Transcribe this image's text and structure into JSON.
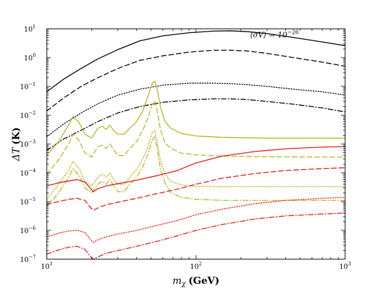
{
  "chart_data": {
    "type": "line",
    "xlabel_var": "m",
    "xlabel_sub": "χ",
    "xlabel_unit": "(GeV)",
    "ylabel_var": "ΔT",
    "ylabel_unit": "(K)",
    "x_scale": "log",
    "y_scale": "log",
    "xlim": [
      10,
      1000
    ],
    "ylim": [
      1e-07,
      10
    ],
    "grid": false,
    "x_ticks": [
      {
        "value": 10,
        "base": "10",
        "exp": "1"
      },
      {
        "value": 100,
        "base": "10",
        "exp": "2"
      },
      {
        "value": 1000,
        "base": "10",
        "exp": "3"
      }
    ],
    "y_ticks": [
      {
        "value": 1e-07,
        "base": "10",
        "exp": "−7"
      },
      {
        "value": 1e-06,
        "base": "10",
        "exp": "−6"
      },
      {
        "value": 1e-05,
        "base": "10",
        "exp": "−5"
      },
      {
        "value": 0.0001,
        "base": "10",
        "exp": "−4"
      },
      {
        "value": 0.001,
        "base": "10",
        "exp": "−3"
      },
      {
        "value": 0.01,
        "base": "10",
        "exp": "−2"
      },
      {
        "value": 0.1,
        "base": "10",
        "exp": "−1"
      },
      {
        "value": 1,
        "base": "10",
        "exp": "0"
      },
      {
        "value": 10,
        "base": "10",
        "exp": "1"
      }
    ],
    "annotation": {
      "lhs": "⟨σV⟩ = 10",
      "exp": "−26",
      "x": 230,
      "y": 5.0
    },
    "series": [
      {
        "color": "#000000",
        "style": "solid",
        "x": [
          10,
          13,
          17,
          22,
          30,
          42,
          60,
          90,
          130,
          170,
          220,
          300,
          450,
          700,
          1000
        ],
        "y": [
          0.065,
          0.18,
          0.42,
          0.9,
          1.9,
          3.8,
          5.7,
          7.3,
          8.3,
          8.5,
          8.0,
          6.8,
          5.0,
          3.5,
          2.6
        ]
      },
      {
        "color": "#000000",
        "style": "dashed",
        "x": [
          10,
          13,
          17,
          22,
          30,
          42,
          60,
          90,
          130,
          170,
          220,
          300,
          450,
          700,
          1000
        ],
        "y": [
          0.014,
          0.04,
          0.1,
          0.2,
          0.42,
          0.8,
          1.15,
          1.55,
          1.8,
          1.8,
          1.7,
          1.4,
          1.0,
          0.7,
          0.5
        ]
      },
      {
        "color": "#000000",
        "style": "dotted",
        "x": [
          10,
          13,
          17,
          22,
          30,
          42,
          60,
          90,
          130,
          170,
          220,
          300,
          450,
          700,
          1000
        ],
        "y": [
          0.0018,
          0.005,
          0.012,
          0.025,
          0.05,
          0.08,
          0.11,
          0.13,
          0.13,
          0.125,
          0.115,
          0.1,
          0.08,
          0.065,
          0.05
        ]
      },
      {
        "color": "#000000",
        "style": "dashdot",
        "x": [
          10,
          13,
          17,
          22,
          30,
          42,
          60,
          90,
          130,
          170,
          220,
          300,
          450,
          700,
          1000
        ],
        "y": [
          0.0006,
          0.0015,
          0.003,
          0.006,
          0.012,
          0.02,
          0.028,
          0.034,
          0.037,
          0.037,
          0.035,
          0.03,
          0.024,
          0.018,
          0.013
        ]
      },
      {
        "color": "#b5b51e",
        "style": "solid",
        "x": [
          10,
          12,
          14,
          15,
          16.5,
          18,
          20,
          22,
          23.5,
          25,
          26.5,
          28,
          30,
          33,
          36,
          40,
          44,
          48,
          51,
          53,
          55,
          58,
          62,
          68,
          80,
          100,
          150,
          300,
          1000
        ],
        "y": [
          0.0004,
          0.0012,
          0.0045,
          0.009,
          0.0055,
          0.0022,
          0.0016,
          0.0035,
          0.0042,
          0.0032,
          0.0045,
          0.003,
          0.0022,
          0.0022,
          0.0035,
          0.006,
          0.014,
          0.05,
          0.13,
          0.15,
          0.08,
          0.018,
          0.006,
          0.0035,
          0.0023,
          0.0019,
          0.0017,
          0.0016,
          0.0016
        ]
      },
      {
        "color": "#b5b51e",
        "style": "dashed",
        "x": [
          10,
          12,
          14,
          15,
          16.5,
          18,
          20,
          22,
          23.5,
          25,
          26.5,
          28,
          30,
          33,
          36,
          40,
          44,
          48,
          51,
          53,
          55,
          58,
          62,
          68,
          80,
          100,
          150,
          300,
          1000
        ],
        "y": [
          9e-05,
          0.00028,
          0.001,
          0.0022,
          0.0013,
          0.0005,
          0.00035,
          0.0008,
          0.0009,
          0.0007,
          0.001,
          0.00065,
          0.0004,
          0.0004,
          0.0007,
          0.0012,
          0.003,
          0.009,
          0.025,
          0.03,
          0.014,
          0.003,
          0.0011,
          0.0007,
          0.00048,
          0.00042,
          0.00038,
          0.00036,
          0.00035
        ]
      },
      {
        "color": "#b5b51e",
        "style": "dotted",
        "x": [
          10,
          12,
          14,
          15,
          16.5,
          18,
          20,
          22,
          23.5,
          25,
          26.5,
          28,
          30,
          33,
          36,
          40,
          44,
          48,
          51,
          53,
          55,
          58,
          62,
          68,
          80,
          100,
          150,
          300,
          1000
        ],
        "y": [
          1.2e-05,
          4e-05,
          0.00012,
          0.00025,
          0.00014,
          5e-05,
          3.5e-05,
          7e-05,
          9e-05,
          7e-05,
          0.0001,
          6e-05,
          4e-05,
          4e-05,
          7e-05,
          0.00013,
          0.0003,
          0.0009,
          0.0025,
          0.003,
          0.0012,
          0.00025,
          9e-05,
          5e-05,
          3.8e-05,
          3.4e-05,
          3.3e-05,
          3.3e-05,
          3.3e-05
        ]
      },
      {
        "color": "#b5b51e",
        "style": "dashdot",
        "x": [
          10,
          12,
          14,
          15,
          16.5,
          18,
          20,
          22,
          23.5,
          25,
          26.5,
          28,
          30,
          33,
          36,
          40,
          44,
          48,
          51,
          53,
          55,
          58,
          62,
          68,
          80,
          100,
          150,
          300,
          1000
        ],
        "y": [
          7e-06,
          2e-05,
          7e-05,
          0.00014,
          8e-05,
          3e-05,
          2e-05,
          4e-05,
          5e-05,
          4e-05,
          6e-05,
          3.5e-05,
          2.2e-05,
          2.2e-05,
          4e-05,
          7e-05,
          0.00016,
          0.0005,
          0.0014,
          0.0018,
          0.0007,
          0.00012,
          4.5e-05,
          2e-05,
          1.4e-05,
          1.2e-05,
          1.1e-05,
          1.1e-05,
          1.1e-05
        ]
      },
      {
        "color": "#dd1b12",
        "style": "solid",
        "x": [
          10,
          12,
          14,
          16,
          18,
          19.5,
          20.5,
          22,
          25,
          30,
          40,
          55,
          75,
          100,
          150,
          250,
          400,
          700,
          1000
        ],
        "y": [
          3.5e-05,
          4.5e-05,
          5.2e-05,
          5.8e-05,
          4.8e-05,
          3e-05,
          2.2e-05,
          2.8e-05,
          3.5e-05,
          4.2e-05,
          5.5e-05,
          8e-05,
          0.00012,
          0.00022,
          0.00038,
          0.00055,
          0.00068,
          0.00078,
          0.00082
        ]
      },
      {
        "color": "#dd1b12",
        "style": "dashed",
        "x": [
          10,
          12,
          14,
          16,
          18,
          19.5,
          20.5,
          22,
          25,
          30,
          40,
          55,
          75,
          100,
          150,
          250,
          400,
          700,
          1000
        ],
        "y": [
          8e-06,
          1e-05,
          1.2e-05,
          1.3e-05,
          1.1e-05,
          6.5e-06,
          5e-06,
          6e-06,
          7.8e-06,
          9.5e-06,
          1.3e-05,
          1.9e-05,
          2.7e-05,
          4e-05,
          6.5e-05,
          9.5e-05,
          0.00012,
          0.00014,
          0.00015
        ]
      },
      {
        "color": "#dd1b12",
        "style": "dotted",
        "x": [
          10,
          12,
          14,
          16,
          18,
          19.5,
          20.5,
          22,
          25,
          30,
          40,
          55,
          75,
          100,
          150,
          250,
          400,
          700,
          1000
        ],
        "y": [
          6e-07,
          8e-07,
          9.5e-07,
          1e-06,
          8.5e-07,
          5e-07,
          3.8e-07,
          4.7e-07,
          6e-07,
          7.5e-07,
          1e-06,
          1.5e-06,
          2.2e-06,
          3.5e-06,
          5.5e-06,
          8.5e-06,
          1.1e-05,
          1.3e-05,
          1.4e-05
        ]
      },
      {
        "color": "#dd1b12",
        "style": "dashdot",
        "x": [
          10,
          12,
          14,
          16,
          18,
          19.5,
          20.5,
          22,
          25,
          30,
          40,
          55,
          75,
          100,
          150,
          250,
          400,
          700,
          1000
        ],
        "y": [
          1.5e-07,
          2.1e-07,
          2.6e-07,
          2.8e-07,
          2.2e-07,
          1.3e-07,
          1e-07,
          1.2e-07,
          1.6e-07,
          2e-07,
          2.8e-07,
          4.2e-07,
          6.5e-07,
          1e-06,
          1.6e-06,
          2.5e-06,
          3.2e-06,
          3.7e-06,
          4e-06
        ]
      }
    ]
  }
}
